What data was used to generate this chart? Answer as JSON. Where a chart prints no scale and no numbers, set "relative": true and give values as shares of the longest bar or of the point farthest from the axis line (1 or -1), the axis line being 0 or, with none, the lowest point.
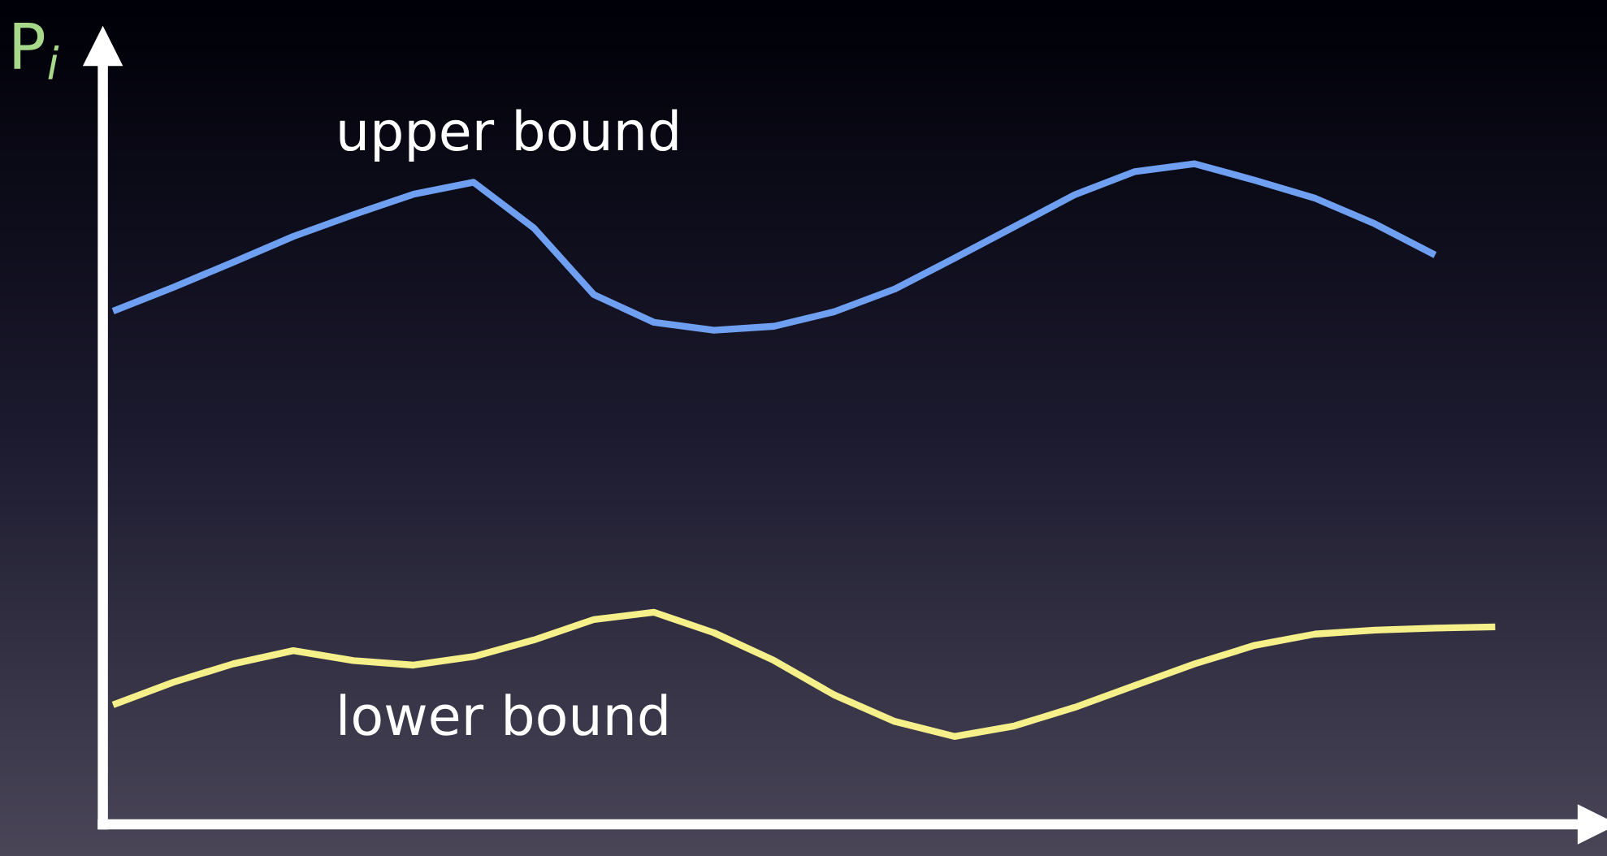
{
  "chart_data": {
    "type": "line",
    "relative": true,
    "ylabel": "P$_{i}$",
    "legend": false,
    "marker": "none",
    "line_style": "solid",
    "categories": [
      null,
      null,
      null,
      null,
      null,
      null,
      null,
      null,
      null,
      null,
      null,
      null,
      null,
      null,
      null,
      null,
      null,
      null,
      null,
      null,
      null,
      null,
      null,
      null
    ],
    "series": [
      {
        "name": "upper bound",
        "color": "#6f9ff0",
        "values": [
          0.777,
          0.813,
          0.851,
          0.89,
          0.923,
          0.954,
          0.972,
          0.903,
          0.802,
          0.76,
          0.748,
          0.754,
          0.776,
          0.81,
          0.857,
          0.905,
          0.953,
          0.988,
          1.0,
          0.975,
          0.948,
          0.909,
          0.862,
          null
        ]
      },
      {
        "name": "lower bound",
        "color": "#f5f08a",
        "values": [
          0.181,
          0.215,
          0.243,
          0.263,
          0.248,
          0.241,
          0.254,
          0.279,
          0.31,
          0.321,
          0.29,
          0.248,
          0.196,
          0.156,
          0.133,
          0.149,
          0.177,
          0.21,
          0.243,
          0.271,
          0.288,
          0.294,
          0.297,
          0.299
        ]
      }
    ]
  }
}
